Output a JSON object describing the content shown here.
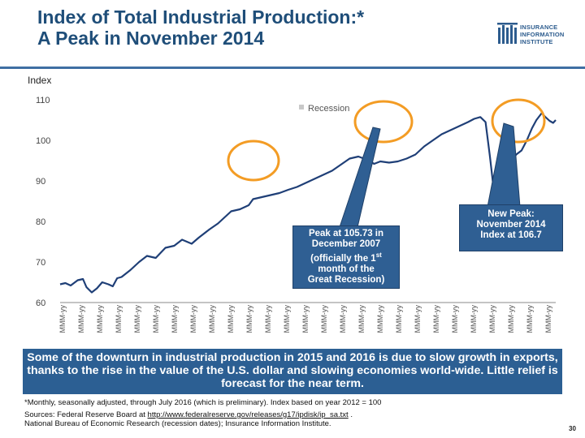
{
  "header": {
    "title_line1": "Index of Total Industrial Production:*",
    "title_line2": "A Peak in November 2014"
  },
  "logo": {
    "line1": "INSURANCE",
    "line2": "INFORMATION",
    "line3": "INSTITUTE"
  },
  "chart_data": {
    "type": "line",
    "title": "Index of Total Industrial Production:* A Peak in November 2014",
    "ylabel": "Index",
    "ylim": [
      60,
      110
    ],
    "yticks": [
      60,
      70,
      80,
      90,
      100,
      110
    ],
    "x_tick_label": "MMM-yy",
    "x_tick_count": 27,
    "x_range": [
      1960,
      2016.5
    ],
    "legend": {
      "entries": [
        "Recession"
      ],
      "placement": "top-center"
    },
    "grid": false,
    "colors": {
      "line": "#1f3f77",
      "highlight": "#f39c24",
      "callout": "#2f5f93"
    },
    "series": [
      {
        "values": [
          [
            1960.0,
            64.5
          ],
          [
            1960.6,
            64.8
          ],
          [
            1961.2,
            64.2
          ],
          [
            1962.0,
            65.5
          ],
          [
            1962.6,
            65.8
          ],
          [
            1963.0,
            63.8
          ],
          [
            1963.6,
            62.5
          ],
          [
            1964.2,
            63.5
          ],
          [
            1964.8,
            65.0
          ],
          [
            1965.5,
            64.5
          ],
          [
            1966.0,
            64.0
          ],
          [
            1966.5,
            66.0
          ],
          [
            1967.0,
            66.3
          ],
          [
            1968.0,
            68.0
          ],
          [
            1969.0,
            70.0
          ],
          [
            1969.9,
            71.5
          ],
          [
            1970.9,
            71.0
          ],
          [
            1972.0,
            73.5
          ],
          [
            1973.0,
            74.0
          ],
          [
            1973.9,
            75.5
          ],
          [
            1975.0,
            74.5
          ],
          [
            1975.8,
            76.0
          ],
          [
            1977.0,
            78.0
          ],
          [
            1978.0,
            79.5
          ],
          [
            1979.0,
            81.5
          ],
          [
            1979.5,
            82.5
          ],
          [
            1980.5,
            83.0
          ],
          [
            1981.5,
            84.0
          ],
          [
            1982.0,
            85.5
          ],
          [
            1983.0,
            86.0
          ],
          [
            1984.0,
            86.5
          ],
          [
            1985.0,
            87.0
          ],
          [
            1986.0,
            87.8
          ],
          [
            1987.0,
            88.5
          ],
          [
            1988.0,
            89.5
          ],
          [
            1989.0,
            90.5
          ],
          [
            1990.0,
            91.5
          ],
          [
            1991.0,
            92.5
          ],
          [
            1992.0,
            94.0
          ],
          [
            1993.0,
            95.5
          ],
          [
            1994.0,
            96.0
          ],
          [
            1995.0,
            95.2
          ],
          [
            1995.8,
            94.2
          ],
          [
            1996.5,
            94.8
          ],
          [
            1997.5,
            94.5
          ],
          [
            1998.5,
            94.8
          ],
          [
            1999.5,
            95.5
          ],
          [
            2000.5,
            96.5
          ],
          [
            2001.5,
            98.5
          ],
          [
            2002.5,
            100.0
          ],
          [
            2003.5,
            101.5
          ],
          [
            2004.5,
            102.5
          ],
          [
            2005.5,
            103.5
          ],
          [
            2006.5,
            104.5
          ],
          [
            2007.2,
            105.3
          ],
          [
            2007.9,
            105.73
          ],
          [
            2008.5,
            104.5
          ],
          [
            2009.0,
            96.0
          ],
          [
            2009.4,
            88.5
          ],
          [
            2009.7,
            87.0
          ],
          [
            2010.2,
            90.0
          ],
          [
            2010.8,
            93.0
          ],
          [
            2011.5,
            95.0
          ],
          [
            2012.0,
            96.5
          ],
          [
            2012.6,
            97.5
          ],
          [
            2013.2,
            100.0
          ],
          [
            2013.8,
            103.0
          ],
          [
            2014.3,
            105.0
          ],
          [
            2014.9,
            106.7
          ],
          [
            2015.3,
            105.8
          ],
          [
            2015.8,
            104.8
          ],
          [
            2016.2,
            104.3
          ],
          [
            2016.5,
            105.0
          ]
        ]
      }
    ],
    "annotations": [
      "Peak at 105.73 in December 2007 (officially the 1st month of the Great Recession)",
      "New Peak: November 2014 Index at 106.7"
    ]
  },
  "callouts": {
    "peak_2007": {
      "line1": "Peak at 105.73 in",
      "line2": "December 2007",
      "line3_pre": "(officially the 1",
      "line3_sup": "st",
      "line4": "month of the",
      "line5": "Great Recession)"
    },
    "peak_2014": {
      "line1": "New Peak:",
      "line2": "November 2014",
      "line3": "Index at 106.7"
    }
  },
  "banner": {
    "text": "Some of the downturn in industrial production in 2015 and 2016 is due to slow growth in exports, thanks to the rise in the value of the U.S. dollar and slowing economies world-wide. Little relief is forecast for the near term."
  },
  "footnotes": {
    "note": "*Monthly, seasonally adjusted, through July 2016 (which is preliminary). Index based on year 2012 = 100",
    "sources_pre": "Sources: Federal Reserve Board at ",
    "sources_link": "http://www.federalreserve.gov/releases/g17/ipdisk/ip_sa.txt",
    "sources_post": " .",
    "sources_line2": "National Bureau of Economic Research (recession dates); Insurance Information Institute."
  },
  "page_number": "30"
}
